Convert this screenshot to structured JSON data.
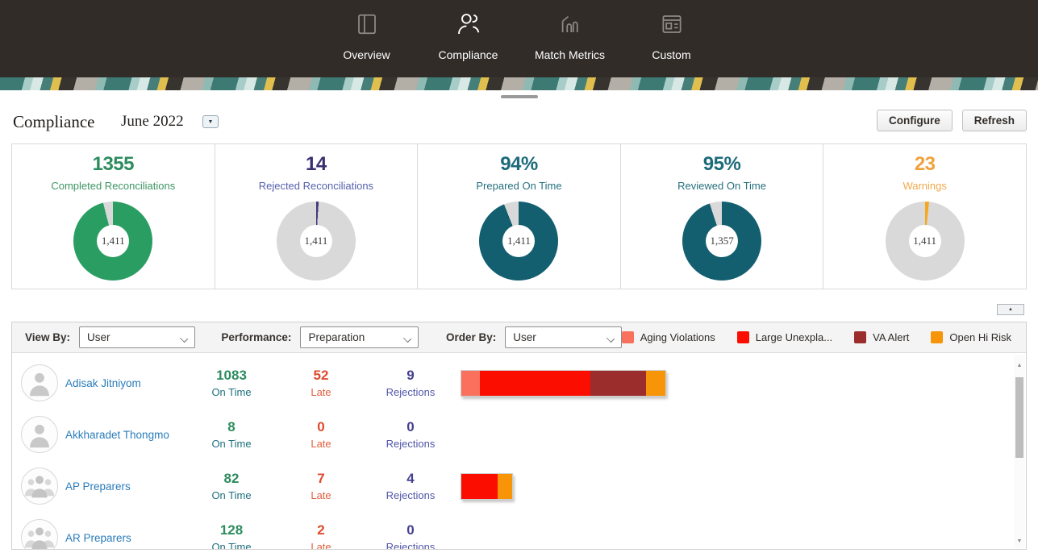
{
  "nav": {
    "tabs": [
      {
        "label": "Overview",
        "icon": "overview-icon",
        "active": false
      },
      {
        "label": "Compliance",
        "icon": "compliance-icon",
        "active": true
      },
      {
        "label": "Match Metrics",
        "icon": "match-metrics-icon",
        "active": false
      },
      {
        "label": "Custom",
        "icon": "custom-icon",
        "active": false
      }
    ]
  },
  "header": {
    "title": "Compliance",
    "period": "June 2022",
    "buttons": {
      "configure": "Configure",
      "refresh": "Refresh"
    }
  },
  "summary_cards": [
    {
      "value": "1355",
      "label": "Completed Reconciliations",
      "accent": "#2d8c5f",
      "label_color": "#3d9663",
      "donut": {
        "pct": 96.0,
        "main_color": "#2a9e62",
        "rest_color": "#d9d9d9",
        "center": "1,411"
      }
    },
    {
      "value": "14",
      "label": "Rejected Reconciliations",
      "accent": "#393071",
      "label_color": "#5661ad",
      "donut": {
        "pct": 1.0,
        "main_color": "#453a7d",
        "rest_color": "#d9d9d9",
        "center": "1,411"
      }
    },
    {
      "value": "94%",
      "label": "Prepared On Time",
      "accent": "#1c6a7a",
      "label_color": "#26707e",
      "donut": {
        "pct": 94.0,
        "main_color": "#135f70",
        "rest_color": "#d9d9d9",
        "center": "1,411"
      }
    },
    {
      "value": "95%",
      "label": "Reviewed On Time",
      "accent": "#1c6a7a",
      "label_color": "#26707e",
      "donut": {
        "pct": 95.0,
        "main_color": "#135f70",
        "rest_color": "#d9d9d9",
        "center": "1,357"
      }
    },
    {
      "value": "23",
      "label": "Warnings",
      "accent": "#f0a23c",
      "label_color": "#f2a94e",
      "donut": {
        "pct": 1.6,
        "main_color": "#f6a722",
        "rest_color": "#d9d9d9",
        "center": "1,411"
      }
    }
  ],
  "panel": {
    "collapse_icon": "▲",
    "filters": [
      {
        "label": "View By:",
        "value": "User"
      },
      {
        "label": "Performance:",
        "value": "Preparation"
      },
      {
        "label": "Order By:",
        "value": "User"
      }
    ],
    "legend": [
      {
        "label": "Aging Violations",
        "color": "#f9705c"
      },
      {
        "label": "Large Unexpla...",
        "color": "#fb0d00"
      },
      {
        "label": "VA Alert",
        "color": "#9b2d2d"
      },
      {
        "label": "Open Hi Risk",
        "color": "#f79408"
      }
    ],
    "stat_labels": {
      "on_time": "On Time",
      "late": "Late",
      "rejections": "Rejections"
    },
    "rows": [
      {
        "name": "Adisak Jitniyom",
        "avatar": "user",
        "on_time": "1083",
        "late": "52",
        "rejections": "9",
        "bar": [
          {
            "color": "#f9705c",
            "width": 23
          },
          {
            "color": "#fb0d00",
            "width": 137
          },
          {
            "color": "#9b2d2d",
            "width": 69
          },
          {
            "color": "#f79408",
            "width": 24
          }
        ]
      },
      {
        "name": "Akkharadet Thongmo",
        "avatar": "user",
        "on_time": "8",
        "late": "0",
        "rejections": "0",
        "bar": []
      },
      {
        "name": "AP Preparers",
        "avatar": "group",
        "on_time": "82",
        "late": "7",
        "rejections": "4",
        "bar": [
          {
            "color": "#fb0d00",
            "width": 45
          },
          {
            "color": "#f79408",
            "width": 18
          }
        ]
      },
      {
        "name": "AR Preparers",
        "avatar": "group",
        "on_time": "128",
        "late": "2",
        "rejections": "0",
        "bar": []
      }
    ]
  },
  "icons": {
    "up_triangle": "▲",
    "down_triangle": "▼",
    "dropdown_caret": "▼"
  },
  "colors": {
    "nav_bg": "#322c28",
    "on_time_green": "#2e8c5e",
    "on_time_teal": "#1e6f7e",
    "late_red": "#df4a2d",
    "rejections_purple": "#44408f",
    "link_blue": "#2a7cba"
  }
}
